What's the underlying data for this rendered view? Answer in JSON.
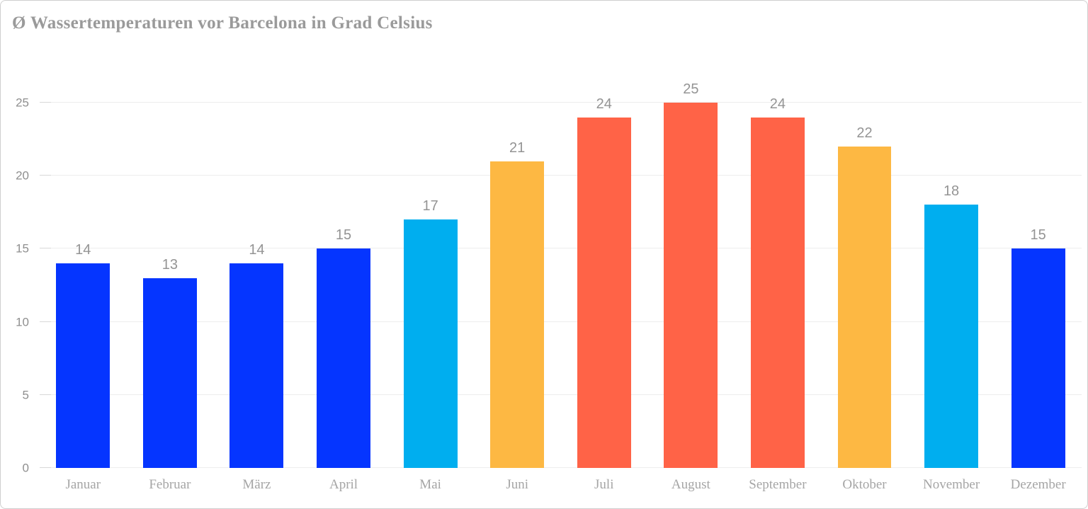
{
  "chart_data": {
    "type": "bar",
    "title": "Ø Wassertemperaturen vor Barcelona in Grad Celsius",
    "categories": [
      "Januar",
      "Februar",
      "März",
      "April",
      "Mai",
      "Juni",
      "Juli",
      "August",
      "September",
      "Oktober",
      "November",
      "Dezember"
    ],
    "values": [
      14,
      13,
      14,
      15,
      17,
      21,
      24,
      25,
      24,
      22,
      18,
      15
    ],
    "value_labels": [
      "14",
      "13",
      "14",
      "15",
      "17",
      "21",
      "24",
      "25",
      "24",
      "22",
      "18",
      "15"
    ],
    "bar_colors": [
      "#0535ff",
      "#0535ff",
      "#0535ff",
      "#0535ff",
      "#00aeef",
      "#fdb843",
      "#ff6347",
      "#ff6347",
      "#ff6347",
      "#fdb843",
      "#00aeef",
      "#0535ff"
    ],
    "xlabel": "",
    "ylabel": "",
    "yticks": [
      0,
      5,
      10,
      15,
      20,
      25
    ],
    "ylim": [
      0,
      28
    ],
    "grid": true,
    "legend": false,
    "colors": {
      "cold_blue": "#0535ff",
      "mild_cyan": "#00aeef",
      "warm_orange": "#fdb843",
      "hot_red": "#ff6347",
      "gridline": "#ededed",
      "text_gray": "#9a9a9a"
    }
  }
}
